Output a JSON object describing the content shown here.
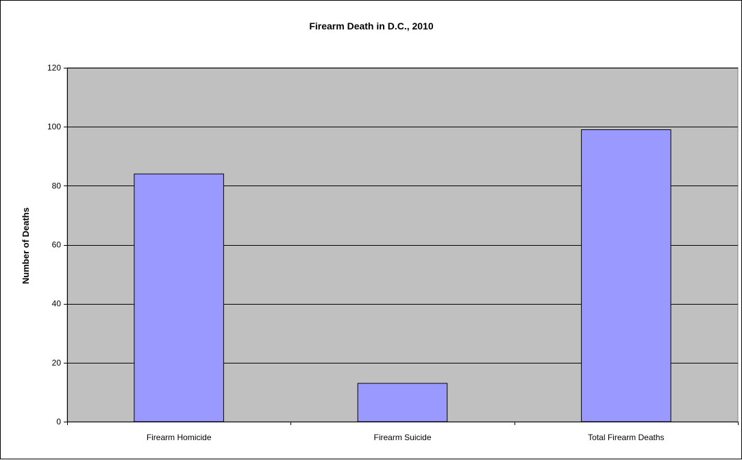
{
  "chart_data": {
    "type": "bar",
    "title": "Firearm Death in D.C., 2010",
    "xlabel": "",
    "ylabel": "Number of Deaths",
    "categories": [
      "Firearm Homicide",
      "Firearm Suicide",
      "Total Firearm Deaths"
    ],
    "values": [
      84,
      13,
      99
    ],
    "ylim": [
      0,
      120
    ],
    "yticks": [
      0,
      20,
      40,
      60,
      80,
      100,
      120
    ],
    "grid": true,
    "legend": "none",
    "colors": {
      "bar_fill": "#9999ff",
      "bar_stroke": "#000000",
      "plot_background": "#c0c0c0",
      "gridline": "#000000"
    }
  }
}
